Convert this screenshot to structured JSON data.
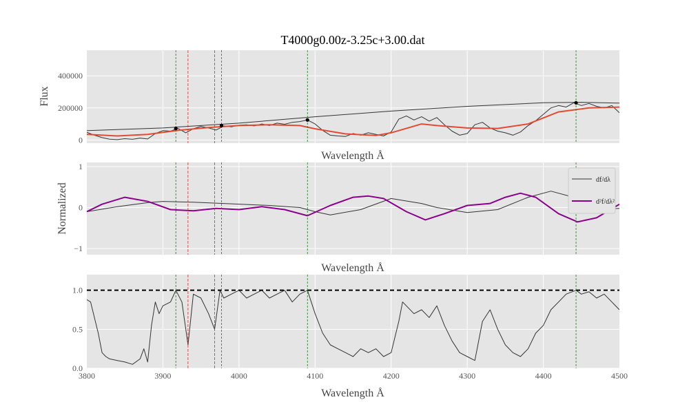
{
  "chart_data": [
    {
      "type": "line",
      "title": "T4000g0.00z-3.25c+3.00.dat",
      "xlabel": "Wavelength Å",
      "ylabel": "Flux",
      "xlim": [
        3800,
        4500
      ],
      "ylim": [
        -20000,
        560000
      ],
      "yticks": [
        0,
        200000,
        400000
      ],
      "ytick_labels": [
        "0",
        "200000",
        "400000"
      ],
      "grid": true,
      "vlines_green": [
        3917,
        3977,
        4090,
        4443
      ],
      "vlines_red": [
        3933,
        3968
      ],
      "series": [
        {
          "role": "spectrum",
          "color": "#333333",
          "x": [
            3800,
            3810,
            3820,
            3830,
            3840,
            3850,
            3860,
            3870,
            3880,
            3890,
            3900,
            3910,
            3920,
            3930,
            3940,
            3950,
            3960,
            3970,
            3980,
            3990,
            4000,
            4010,
            4020,
            4030,
            4040,
            4050,
            4060,
            4070,
            4080,
            4090,
            4100,
            4110,
            4120,
            4130,
            4140,
            4150,
            4160,
            4170,
            4180,
            4190,
            4200,
            4210,
            4220,
            4230,
            4240,
            4250,
            4260,
            4270,
            4280,
            4290,
            4300,
            4310,
            4320,
            4330,
            4340,
            4350,
            4360,
            4370,
            4380,
            4390,
            4400,
            4410,
            4420,
            4430,
            4440,
            4450,
            4460,
            4470,
            4480,
            4490,
            4500
          ],
          "y": [
            48000,
            30000,
            15000,
            5000,
            2000,
            8000,
            4000,
            12000,
            6000,
            40000,
            58000,
            55000,
            72000,
            45000,
            70000,
            85000,
            75000,
            62000,
            88000,
            82000,
            92000,
            95000,
            88000,
            100000,
            90000,
            105000,
            98000,
            110000,
            115000,
            125000,
            100000,
            60000,
            30000,
            25000,
            22000,
            40000,
            30000,
            45000,
            35000,
            25000,
            50000,
            130000,
            150000,
            125000,
            145000,
            118000,
            140000,
            95000,
            55000,
            30000,
            40000,
            95000,
            110000,
            75000,
            55000,
            45000,
            30000,
            50000,
            90000,
            120000,
            160000,
            200000,
            215000,
            205000,
            232000,
            215000,
            228000,
            210000,
            200000,
            215000,
            170000
          ]
        },
        {
          "role": "continuum",
          "color": "#333333",
          "x": [
            3800,
            3900,
            4000,
            4100,
            4200,
            4300,
            4400,
            4450,
            4500
          ],
          "y": [
            58000,
            75000,
            105000,
            145000,
            180000,
            210000,
            232000,
            235000,
            230000
          ]
        },
        {
          "role": "smoothed",
          "color": "#e24a33",
          "x": [
            3800,
            3840,
            3880,
            3920,
            3960,
            4000,
            4040,
            4080,
            4100,
            4140,
            4180,
            4200,
            4240,
            4260,
            4300,
            4340,
            4380,
            4420,
            4460,
            4500
          ],
          "y": [
            35000,
            25000,
            35000,
            60000,
            78000,
            90000,
            95000,
            90000,
            70000,
            38000,
            28000,
            45000,
            100000,
            90000,
            75000,
            72000,
            100000,
            175000,
            200000,
            205000
          ]
        }
      ],
      "markers": {
        "x": [
          3917,
          3977,
          4090,
          4443
        ],
        "y": [
          72000,
          90000,
          125000,
          232000
        ]
      }
    },
    {
      "type": "line",
      "xlabel": "Wavelength Å",
      "ylabel": "Normalized",
      "xlim": [
        3800,
        4500
      ],
      "ylim": [
        -1.15,
        1.1
      ],
      "yticks": [
        -1,
        0,
        1
      ],
      "ytick_labels": [
        "−1",
        "0",
        "1"
      ],
      "grid": true,
      "vlines_green": [
        3917,
        3977,
        4090,
        4443
      ],
      "vlines_red": [
        3933,
        3968
      ],
      "legend": {
        "placement": "right",
        "entries": [
          "df/dλ",
          "d²f/dλ²"
        ]
      },
      "series": [
        {
          "name": "df/dλ",
          "color": "#333333",
          "x": [
            3800,
            3840,
            3880,
            3900,
            3940,
            3980,
            4040,
            4080,
            4100,
            4120,
            4160,
            4200,
            4240,
            4260,
            4300,
            4340,
            4380,
            4410,
            4440,
            4470,
            4500
          ],
          "y": [
            -0.1,
            0.02,
            0.12,
            0.15,
            0.13,
            0.1,
            0.05,
            0.0,
            -0.1,
            -0.18,
            -0.05,
            0.22,
            0.1,
            0.0,
            -0.12,
            -0.05,
            0.25,
            0.4,
            0.25,
            -0.05,
            -0.02
          ]
        },
        {
          "name": "d²f/dλ²",
          "color": "#8b008b",
          "x": [
            3800,
            3820,
            3850,
            3880,
            3910,
            3940,
            3970,
            4000,
            4030,
            4060,
            4090,
            4120,
            4150,
            4170,
            4190,
            4220,
            4245,
            4270,
            4300,
            4330,
            4350,
            4370,
            4390,
            4420,
            4445,
            4470,
            4500
          ],
          "y": [
            -0.1,
            0.08,
            0.25,
            0.15,
            -0.05,
            -0.08,
            -0.02,
            -0.05,
            0.02,
            -0.05,
            -0.2,
            0.05,
            0.25,
            0.28,
            0.22,
            -0.1,
            -0.3,
            -0.15,
            0.05,
            0.1,
            0.25,
            0.35,
            0.25,
            -0.15,
            -0.35,
            -0.25,
            0.08
          ]
        }
      ]
    },
    {
      "type": "line",
      "xlabel": "Wavelength Å",
      "ylabel": "",
      "xlim": [
        3800,
        4500
      ],
      "ylim": [
        0.0,
        1.2
      ],
      "yticks": [
        0.0,
        0.5,
        1.0
      ],
      "ytick_labels": [
        "0.0",
        "0.5",
        "1.0"
      ],
      "xticks": [
        3800,
        3900,
        4000,
        4100,
        4200,
        4300,
        4400,
        4500
      ],
      "xtick_labels": [
        "3800",
        "3900",
        "4000",
        "4100",
        "4200",
        "4300",
        "4400",
        "4500"
      ],
      "grid": true,
      "hline": 1.0,
      "vlines_green": [
        3917,
        3977,
        4090,
        4443
      ],
      "vlines_red": [
        3933,
        3968
      ],
      "series": [
        {
          "role": "normalized",
          "color": "#333333",
          "x": [
            3800,
            3805,
            3810,
            3815,
            3820,
            3825,
            3830,
            3840,
            3850,
            3860,
            3870,
            3875,
            3880,
            3885,
            3890,
            3895,
            3900,
            3910,
            3917,
            3925,
            3933,
            3940,
            3950,
            3960,
            3968,
            3975,
            3980,
            3990,
            4000,
            4010,
            4020,
            4030,
            4040,
            4050,
            4060,
            4070,
            4080,
            4090,
            4100,
            4110,
            4120,
            4130,
            4140,
            4150,
            4160,
            4170,
            4180,
            4190,
            4200,
            4210,
            4215,
            4220,
            4230,
            4240,
            4250,
            4260,
            4270,
            4280,
            4290,
            4300,
            4310,
            4320,
            4330,
            4340,
            4350,
            4360,
            4370,
            4380,
            4390,
            4400,
            4410,
            4420,
            4430,
            4443,
            4450,
            4460,
            4470,
            4480,
            4490,
            4500
          ],
          "y": [
            0.88,
            0.85,
            0.65,
            0.45,
            0.2,
            0.15,
            0.12,
            0.1,
            0.08,
            0.05,
            0.12,
            0.25,
            0.08,
            0.55,
            0.85,
            0.7,
            0.8,
            0.85,
            1.0,
            0.85,
            0.3,
            0.95,
            0.9,
            0.7,
            0.5,
            1.0,
            0.9,
            0.95,
            1.0,
            0.9,
            0.95,
            1.0,
            0.9,
            0.95,
            1.0,
            0.85,
            0.95,
            1.0,
            0.7,
            0.45,
            0.3,
            0.25,
            0.2,
            0.15,
            0.25,
            0.2,
            0.25,
            0.15,
            0.2,
            0.6,
            0.85,
            0.8,
            0.7,
            0.75,
            0.65,
            0.8,
            0.55,
            0.35,
            0.2,
            0.15,
            0.1,
            0.6,
            0.75,
            0.5,
            0.3,
            0.2,
            0.15,
            0.25,
            0.45,
            0.55,
            0.75,
            0.85,
            0.95,
            1.0,
            0.95,
            0.98,
            0.9,
            0.95,
            0.85,
            0.75
          ]
        }
      ]
    }
  ]
}
